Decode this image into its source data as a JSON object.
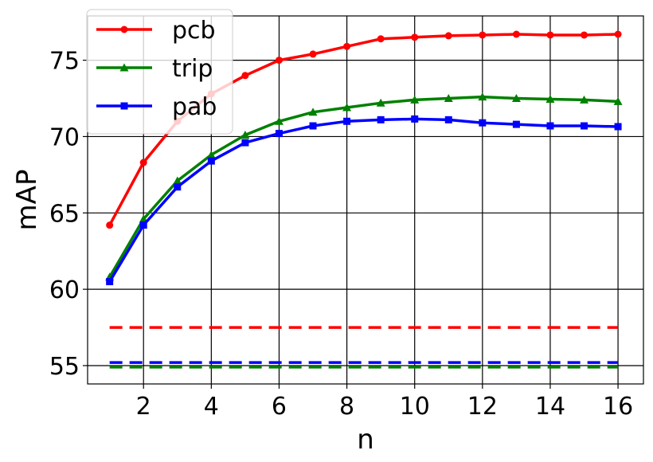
{
  "chart_data": {
    "type": "line",
    "xlabel": "n",
    "ylabel": "mAP",
    "xlim": [
      0.35,
      16.75
    ],
    "ylim": [
      53.8,
      77.9
    ],
    "xticks": [
      2,
      4,
      6,
      8,
      10,
      12,
      14,
      16
    ],
    "yticks": [
      55,
      60,
      65,
      70,
      75
    ],
    "grid": true,
    "legend_position": "top-left",
    "x": [
      1,
      2,
      3,
      4,
      5,
      6,
      7,
      8,
      9,
      10,
      11,
      12,
      13,
      14,
      15,
      16
    ],
    "series": [
      {
        "name": "pcb",
        "color": "#ff0000",
        "marker": "circle",
        "values": [
          64.2,
          68.3,
          71.0,
          72.8,
          74.0,
          75.0,
          75.4,
          75.9,
          76.4,
          76.5,
          76.6,
          76.65,
          76.7,
          76.65,
          76.65,
          76.7
        ],
        "baseline": 57.5
      },
      {
        "name": "trip",
        "color": "#008000",
        "marker": "triangle",
        "values": [
          60.8,
          64.6,
          67.1,
          68.8,
          70.1,
          71.0,
          71.6,
          71.9,
          72.2,
          72.4,
          72.5,
          72.6,
          72.5,
          72.45,
          72.4,
          72.3
        ],
        "baseline": 54.9
      },
      {
        "name": "pab",
        "color": "#0000ff",
        "marker": "square",
        "values": [
          60.5,
          64.2,
          66.7,
          68.4,
          69.6,
          70.2,
          70.7,
          71.0,
          71.1,
          71.15,
          71.1,
          70.9,
          70.8,
          70.7,
          70.7,
          70.65
        ],
        "baseline": 55.2
      }
    ]
  }
}
